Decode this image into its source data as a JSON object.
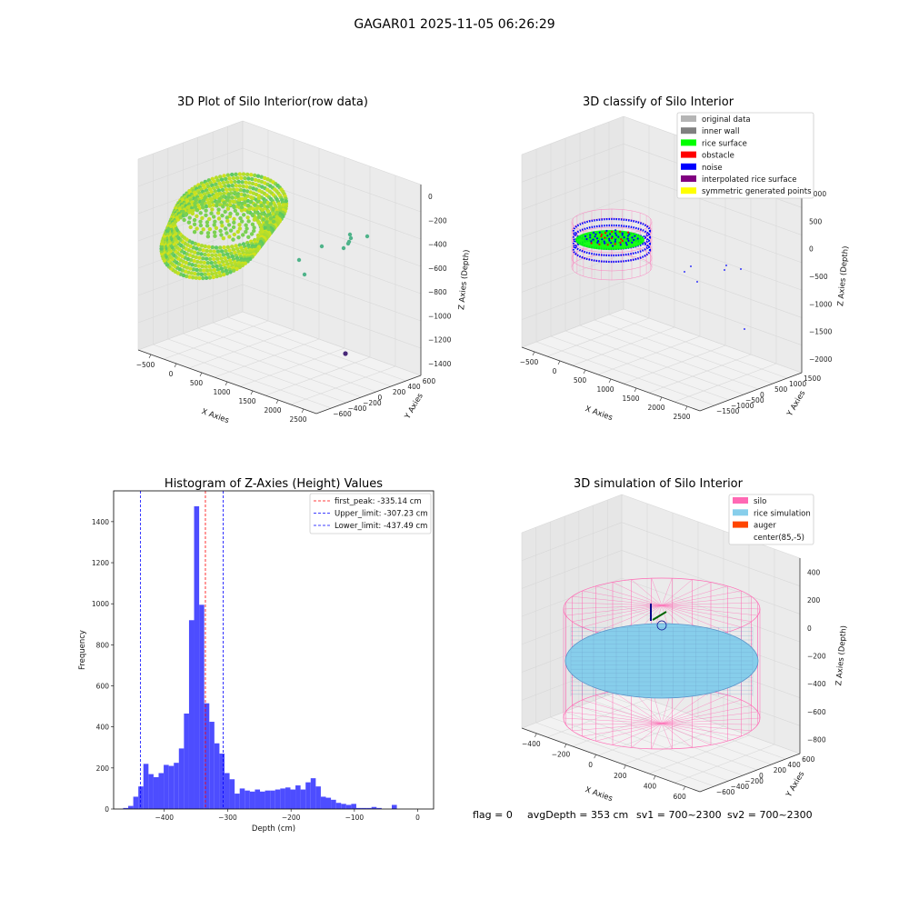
{
  "figure": {
    "suptitle": "GAGAR01 2025-11-05 06:26:29",
    "status": {
      "flag": "flag = 0",
      "avgDepth": "avgDepth = 353 cm",
      "sv1": "sv1 = 700~2300",
      "sv2": "sv2 = 700~2300"
    }
  },
  "chart_data": [
    {
      "type": "scatter",
      "projection": "3d",
      "title": "3D Plot of Silo Interior(row data)",
      "xlabel": "X Axies",
      "ylabel": "Y Axies",
      "zlabel": "Z Axies (Depth)",
      "x_ticks": [
        "−500",
        "0",
        "500",
        "1000",
        "1500",
        "2000",
        "2500"
      ],
      "y_ticks": [
        "−600",
        "−400",
        "−200",
        "0",
        "200",
        "400",
        "600"
      ],
      "z_ticks": [
        "−1400",
        "−1200",
        "−1000",
        "−800",
        "−600",
        "−400",
        "−200",
        "0"
      ],
      "xlim": [
        -600,
        2700
      ],
      "ylim": [
        -650,
        650
      ],
      "zlim": [
        -1550,
        50
      ],
      "colormap": "viridis",
      "series": [
        {
          "values_description": "dense ring of surface points",
          "cx": 0,
          "cy": 0,
          "r": 650,
          "z": -330
        },
        {
          "outliers": [
            {
              "x": 950,
              "y": 120,
              "z": -600
            },
            {
              "x": 1150,
              "y": 200,
              "z": -650
            },
            {
              "x": 1200,
              "y": 180,
              "z": -700
            },
            {
              "x": 1250,
              "y": 220,
              "z": -640
            },
            {
              "x": 1230,
              "y": 200,
              "z": -760
            },
            {
              "x": 1500,
              "y": 230,
              "z": -600
            },
            {
              "x": 1600,
              "y": 600,
              "z": -850
            },
            {
              "x": 1700,
              "y": 420,
              "z": -820
            },
            {
              "x": 2300,
              "y": -620,
              "z": -1480
            }
          ]
        }
      ]
    },
    {
      "type": "scatter",
      "projection": "3d",
      "title": "3D classify of Silo Interior",
      "xlabel": "X Axies",
      "ylabel": "Y Axies",
      "zlabel": "Z Axies (Depth)",
      "x_ticks": [
        "−500",
        "0",
        "500",
        "1000",
        "1500",
        "2000",
        "2500"
      ],
      "y_ticks": [
        "−1500",
        "−1000",
        "−500",
        "0",
        "500",
        "1000",
        "1500"
      ],
      "z_ticks": [
        "−2000",
        "−1500",
        "−1000",
        "−500",
        "0",
        "500",
        "1000"
      ],
      "xlim": [
        -600,
        2700
      ],
      "ylim": [
        -1600,
        1600
      ],
      "zlim": [
        -2100,
        1100
      ],
      "legend": {
        "placement": "upper-right",
        "entries": [
          {
            "label": "original data",
            "color": "#b4b4b4"
          },
          {
            "label": "inner wall",
            "color": "#808080"
          },
          {
            "label": "rice surface",
            "color": "#00ff00"
          },
          {
            "label": "obstacle",
            "color": "#ff0000"
          },
          {
            "label": "noise",
            "color": "#0000ff"
          },
          {
            "label": "interpolated rice surface",
            "color": "#800080"
          },
          {
            "label": "symmetric generated points",
            "color": "#ffff00"
          }
        ]
      }
    },
    {
      "type": "bar",
      "title": "Histogram of Z-Axies (Height) Values",
      "xlabel": "Depth (cm)",
      "ylabel": "Frequency",
      "xlim": [
        -480,
        25
      ],
      "ylim": [
        0,
        1550
      ],
      "x_ticks": [
        -400,
        -300,
        -200,
        -100,
        0
      ],
      "y_ticks": [
        0,
        200,
        400,
        600,
        800,
        1000,
        1200,
        1400
      ],
      "bar_color": "#4d4dff",
      "bin_start": -465,
      "bin_width": 8.0,
      "values": [
        5,
        15,
        60,
        110,
        220,
        170,
        155,
        175,
        215,
        210,
        225,
        295,
        465,
        920,
        1475,
        995,
        515,
        425,
        320,
        270,
        175,
        145,
        75,
        100,
        90,
        85,
        95,
        85,
        90,
        90,
        95,
        100,
        105,
        95,
        115,
        95,
        130,
        150,
        110,
        60,
        55,
        45,
        30,
        25,
        20,
        25,
        5,
        5,
        5,
        10,
        5,
        0,
        0,
        20
      ],
      "reference_lines": [
        {
          "label": "first_peak: -335.14 cm",
          "x": -335.14,
          "color": "#ff0000"
        },
        {
          "label": "Upper_limit: -307.23 cm",
          "x": -307.23,
          "color": "#0000ff"
        },
        {
          "label": "Lower_limit: -437.49 cm",
          "x": -437.49,
          "color": "#0000ff"
        }
      ],
      "legend": {
        "placement": "top-right"
      }
    },
    {
      "type": "surface",
      "projection": "3d",
      "title": "3D simulation of Silo Interior",
      "xlabel": "X Axies",
      "ylabel": "Y Axies",
      "zlabel": "Z Axies (Depth)",
      "x_ticks": [
        "−400",
        "−200",
        "0",
        "200",
        "400",
        "600"
      ],
      "y_ticks": [
        "−600",
        "−400",
        "−200",
        "0",
        "200",
        "400",
        "600"
      ],
      "z_ticks": [
        "−800",
        "−600",
        "−400",
        "−200",
        "0",
        "200",
        "400"
      ],
      "xlim": [
        -500,
        700
      ],
      "ylim": [
        -700,
        700
      ],
      "zlim": [
        -900,
        450
      ],
      "legend": {
        "placement": "upper-right",
        "entries": [
          {
            "label": "silo",
            "color": "#ff69b4"
          },
          {
            "label": "rice simulation",
            "color": "#87ceeb"
          },
          {
            "label": "auger",
            "color": "#ff4500"
          },
          {
            "label": "center(85,-5)",
            "color": "#ffffff"
          }
        ]
      }
    }
  ]
}
